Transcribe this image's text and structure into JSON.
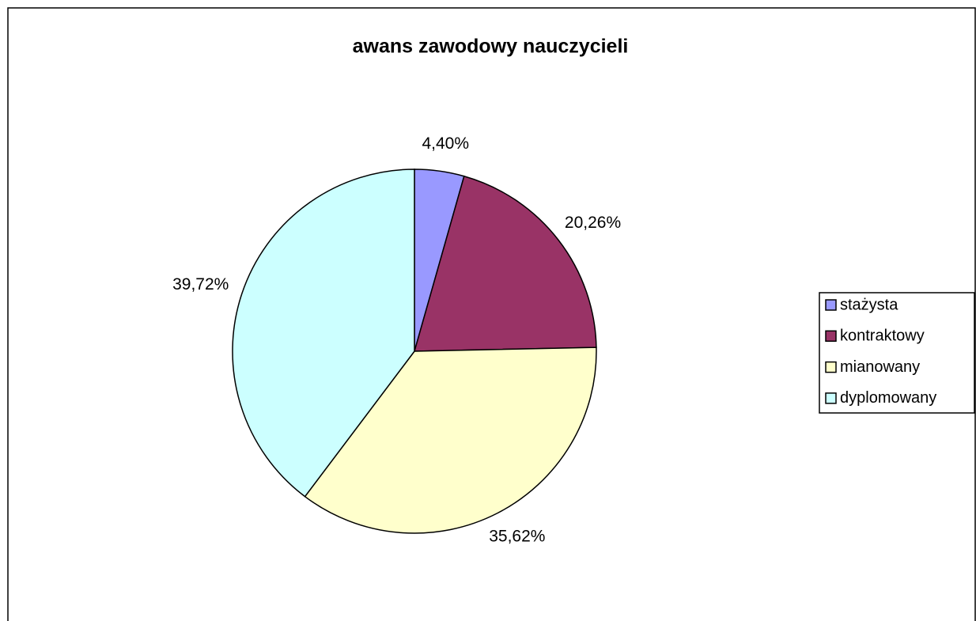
{
  "chart_data": {
    "type": "pie",
    "title": "awans zawodowy nauczycieli",
    "categories": [
      "stażysta",
      "kontraktowy",
      "mianowany",
      "dyplomowany"
    ],
    "values": [
      4.4,
      20.26,
      35.62,
      39.72
    ],
    "value_labels": [
      "4,40%",
      "20,26%",
      "35,62%",
      "39,72%"
    ],
    "colors": [
      "#9999ff",
      "#993366",
      "#ffffcc",
      "#ccffff"
    ],
    "legend": "right"
  }
}
